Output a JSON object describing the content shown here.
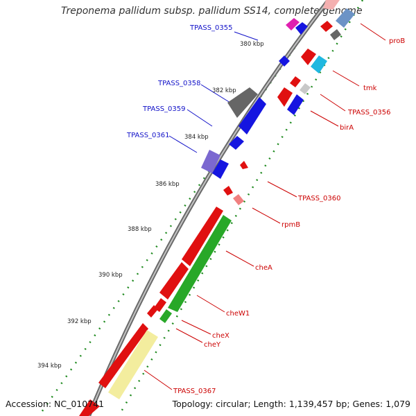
{
  "title": "Treponema pallidum subsp. pallidum SS14, complete genome",
  "footer": {
    "accession": "Accession: NC_010741",
    "topology": "Topology: circular; Length: 1,139,457 bp; Genes: 1,079"
  },
  "ticks": [
    "380 kbp",
    "382 kbp",
    "384 kbp",
    "386 kbp",
    "388 kbp",
    "390 kbp",
    "392 kbp",
    "394 kbp"
  ],
  "genes": {
    "TPASS_0355": "TPASS_0355",
    "TPASS_0358": "TPASS_0358",
    "TPASS_0359": "TPASS_0359",
    "TPASS_0361": "TPASS_0361",
    "proB": "proB",
    "tmk": "tmk",
    "TPASS_0356": "TPASS_0356",
    "birA": "birA",
    "TPASS_0360": "TPASS_0360",
    "rpmB": "rpmB",
    "cheA": "cheA",
    "cheW1": "cheW1",
    "cheX": "cheX",
    "cheY": "cheY",
    "TPASS_0367": "TPASS_0367"
  },
  "colors": {
    "backbone": "#8c8c8c",
    "ticks": "#1f8a1f",
    "left_labels": "#1010c8",
    "right_labels": "#cc0000"
  }
}
